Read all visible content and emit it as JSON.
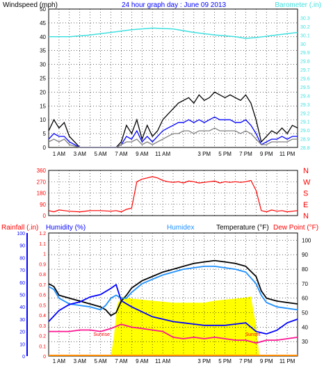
{
  "chart_data": [
    {
      "type": "line",
      "header": {
        "left": "Windspeed (mph)",
        "center": "24 hour graph day : June 09 2013",
        "right": "Barometer (.in)"
      },
      "ylim": [
        0,
        50
      ],
      "y_ticks": [
        "0",
        "5",
        "10",
        "15",
        "20",
        "25",
        "30",
        "35",
        "40",
        "45",
        "50"
      ],
      "y2lim": [
        28.8,
        30.4
      ],
      "y2_ticks": [
        "28.8",
        "28.9",
        "29.0",
        "29.1",
        "29.2",
        "29.3",
        "29.4",
        "29.5",
        "29.6",
        "29.7",
        "29.8",
        "29.9",
        "30",
        "30.1",
        "30.2",
        "30.3"
      ],
      "x_ticks": [
        "1 AM",
        "3 AM",
        "5 AM",
        "7 AM",
        "9 AM",
        "11 AM",
        "3 PM",
        "5 PM",
        "7 PM",
        "9 PM",
        "11 PM"
      ],
      "grid": true,
      "series": [
        {
          "color": "#000000",
          "x": [
            0,
            0.5,
            1,
            1.5,
            2,
            3,
            4,
            5,
            6,
            6.5,
            7,
            7.5,
            8,
            8.5,
            9,
            9.5,
            10,
            10.5,
            11,
            11.5,
            12,
            12.5,
            13,
            13.5,
            14,
            14.5,
            15,
            15.5,
            16,
            16.5,
            17,
            17.5,
            18,
            18.5,
            19,
            19.5,
            20,
            20.5,
            21,
            21.5,
            22,
            22.5,
            23,
            23.5,
            24
          ],
          "values": [
            6,
            10,
            7,
            9,
            4,
            0,
            0,
            0,
            0,
            0,
            2,
            8,
            5,
            10,
            3,
            8,
            4,
            6,
            10,
            12,
            14,
            16,
            17,
            18,
            16,
            19,
            17,
            18,
            20,
            19,
            18,
            19,
            18,
            17,
            19,
            16,
            10,
            2,
            4,
            6,
            5,
            7,
            5,
            8,
            7
          ]
        },
        {
          "color": "#0000ff",
          "x": [
            0,
            0.5,
            1,
            1.5,
            2,
            3,
            4,
            5,
            6,
            6.5,
            7,
            7.5,
            8,
            8.5,
            9,
            9.5,
            10,
            10.5,
            11,
            11.5,
            12,
            12.5,
            13,
            13.5,
            14,
            14.5,
            15,
            15.5,
            16,
            16.5,
            17,
            17.5,
            18,
            18.5,
            19,
            19.5,
            20,
            20.5,
            21,
            21.5,
            22,
            22.5,
            23,
            23.5,
            24
          ],
          "values": [
            3,
            5,
            4,
            4,
            2,
            0,
            0,
            0,
            0,
            0,
            1,
            4,
            3,
            6,
            2,
            4,
            2,
            4,
            6,
            7,
            8,
            9,
            9,
            10,
            9,
            10,
            9,
            10,
            11,
            10,
            10,
            10,
            9,
            9,
            10,
            8,
            5,
            1,
            2,
            3,
            3,
            4,
            3,
            4,
            4
          ]
        },
        {
          "color": "#808080",
          "x": [
            0,
            0.5,
            1,
            1.5,
            2,
            3,
            4,
            5,
            6,
            6.5,
            7,
            7.5,
            8,
            8.5,
            9,
            9.5,
            10,
            10.5,
            11,
            11.5,
            12,
            12.5,
            13,
            13.5,
            14,
            14.5,
            15,
            15.5,
            16,
            16.5,
            17,
            17.5,
            18,
            18.5,
            19,
            19.5,
            20,
            20.5,
            21,
            21.5,
            22,
            22.5,
            23,
            23.5,
            24
          ],
          "values": [
            2,
            3,
            2,
            3,
            1,
            0,
            0,
            0,
            0,
            0,
            1,
            2,
            2,
            3,
            1,
            2,
            1,
            2,
            3,
            4,
            5,
            5,
            6,
            6,
            5,
            6,
            6,
            6,
            7,
            6,
            6,
            6,
            6,
            5,
            6,
            5,
            3,
            1,
            1,
            2,
            2,
            2,
            2,
            3,
            3
          ]
        },
        {
          "color": "#40e0e0",
          "axis": "right",
          "x": [
            0,
            2,
            4,
            6,
            8,
            10,
            12,
            14,
            16,
            18,
            19,
            20,
            22,
            24
          ],
          "values": [
            30.08,
            30.08,
            30.1,
            30.13,
            30.16,
            30.18,
            30.17,
            30.13,
            30.1,
            30.08,
            30.06,
            30.07,
            30.1,
            30.13
          ]
        }
      ]
    },
    {
      "type": "scatter",
      "y_ticks": [
        "0",
        "90",
        "180",
        "270",
        "360"
      ],
      "ylim": [
        0,
        360
      ],
      "y2_ticks": [
        "N",
        "W",
        "S",
        "E",
        "N"
      ],
      "grid": true,
      "series": [
        {
          "color": "#ff0000",
          "x": [
            0,
            0.5,
            1,
            1.5,
            2,
            3,
            4,
            5,
            6,
            6.5,
            7,
            7.5,
            8,
            8.5,
            9,
            9.5,
            10,
            10.5,
            11,
            11.5,
            12,
            12.5,
            13,
            13.5,
            14,
            14.5,
            15,
            15.5,
            16,
            16.5,
            17,
            17.5,
            18,
            18.5,
            19,
            19.5,
            20,
            20.5,
            21,
            21.5,
            22,
            22.5,
            23,
            23.5,
            24
          ],
          "values": [
            40,
            30,
            45,
            40,
            35,
            30,
            40,
            40,
            35,
            40,
            30,
            50,
            60,
            270,
            290,
            300,
            310,
            300,
            280,
            270,
            265,
            270,
            260,
            275,
            270,
            260,
            265,
            270,
            275,
            260,
            270,
            265,
            270,
            265,
            270,
            280,
            200,
            40,
            30,
            45,
            35,
            40,
            30,
            35,
            40
          ]
        }
      ]
    },
    {
      "type": "line",
      "header": {
        "rainfall": "Rainfall (.in)",
        "humidity": "Humidity (%)",
        "humidex": "Humidex",
        "temperature": "Temperature (°F)",
        "dewpoint": "Dew Point (°F)"
      },
      "humidity_ticks": [
        "0",
        "10",
        "20",
        "30",
        "40",
        "50",
        "60",
        "70",
        "80",
        "90",
        "100"
      ],
      "rain_ticks": [
        "0",
        "0.1",
        "0.2",
        "0.3",
        "0.4",
        "0.5",
        "0.6",
        "0.7",
        "0.8",
        "0.9",
        "1",
        "1.1",
        "1.2"
      ],
      "temp_ticks": [
        "30",
        "40",
        "50",
        "60",
        "70",
        "80",
        "90",
        "100"
      ],
      "temp_ylim": [
        20,
        105
      ],
      "annotations": [
        "Sunrise",
        "Sunset"
      ],
      "grid": true,
      "series": [
        {
          "color": "#000000",
          "x": [
            0,
            0.5,
            1,
            2,
            3,
            4,
            5,
            5.5,
            6,
            6.5,
            7,
            7.5,
            8,
            9,
            10,
            11,
            12,
            13,
            14,
            15,
            16,
            17,
            18,
            19,
            20,
            20.5,
            21,
            22,
            23,
            24
          ],
          "values": [
            70,
            68,
            62,
            60,
            58,
            56,
            54,
            52,
            48,
            50,
            58,
            62,
            67,
            72,
            75,
            78,
            80,
            82,
            84,
            85,
            86,
            85,
            84,
            82,
            75,
            65,
            60,
            58,
            57,
            56
          ]
        },
        {
          "color": "#1e90ff",
          "x": [
            0,
            0.5,
            1,
            2,
            3,
            4,
            5,
            5.5,
            6,
            6.5,
            7,
            7.5,
            8,
            9,
            10,
            11,
            12,
            13,
            14,
            15,
            16,
            17,
            18,
            19,
            20,
            20.5,
            21,
            22,
            23,
            24
          ],
          "values": [
            68,
            66,
            60,
            56,
            55,
            54,
            52,
            55,
            60,
            62,
            60,
            60,
            64,
            70,
            73,
            76,
            78,
            80,
            81,
            82,
            82,
            81,
            80,
            78,
            70,
            62,
            57,
            54,
            53,
            52
          ]
        },
        {
          "color": "#0000ff",
          "axis": "humidity",
          "x": [
            0,
            1,
            2,
            3,
            4,
            5,
            6,
            6.5,
            7,
            8,
            9,
            10,
            11,
            12,
            13,
            14,
            15,
            16,
            17,
            18,
            19,
            20,
            21,
            22,
            23,
            24
          ],
          "values": [
            28,
            37,
            42,
            44,
            48,
            50,
            55,
            58,
            45,
            40,
            36,
            32,
            30,
            28,
            27,
            26,
            25,
            25,
            25,
            26,
            27,
            20,
            18,
            21,
            27,
            30
          ]
        },
        {
          "color": "#ff1493",
          "x": [
            0,
            1,
            2,
            3,
            4,
            5,
            6,
            7,
            8,
            9,
            10,
            11,
            12,
            13,
            14,
            15,
            16,
            17,
            18,
            19,
            20,
            21,
            22,
            23,
            24
          ],
          "values": [
            37,
            37,
            37,
            38,
            38,
            37,
            39,
            42,
            40,
            39,
            38,
            37,
            33,
            32,
            33,
            32,
            33,
            32,
            31,
            31,
            29,
            31,
            31,
            32,
            33
          ]
        },
        {
          "color": "#ffff00",
          "axis": "rain",
          "x": [
            6,
            6.3,
            6.6,
            7,
            8,
            9,
            10,
            11,
            12,
            13,
            14,
            15,
            16,
            17,
            18,
            19,
            19.5,
            20,
            20.3
          ],
          "values": [
            0,
            0.2,
            0.5,
            0.58,
            0.56,
            0.55,
            0.54,
            0.53,
            0.52,
            0.52,
            0.52,
            0.52,
            0.54,
            0.55,
            0.56,
            0.57,
            0.58,
            0.3,
            0
          ]
        }
      ]
    }
  ]
}
